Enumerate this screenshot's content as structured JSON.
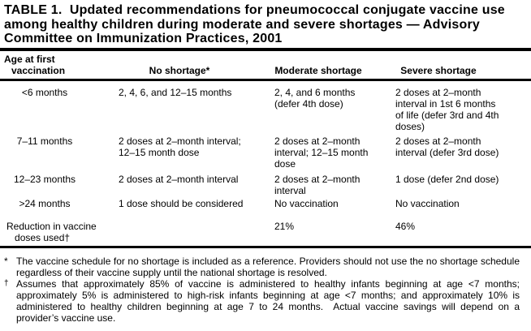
{
  "title": "TABLE 1.  Updated recommendations for pneumococcal conjugate vaccine use\namong healthy children during moderate and severe shortages — Advisory\nCommittee on Immunization Practices, 2001",
  "table": {
    "header": {
      "col1_line1": "Age at first",
      "col1_line2": "vaccination",
      "col2": "No shortage*",
      "col3": "Moderate shortage",
      "col4": "Severe shortage"
    },
    "rows": [
      {
        "age": "<6 months",
        "no_shortage": "2, 4, 6, and 12–15 months",
        "moderate": "2, 4, and 6 months\n(defer 4th dose)",
        "severe": "2 doses at 2–month\ninterval in 1st 6 months\nof life (defer 3rd and 4th\ndoses)"
      },
      {
        "age": "7–11 months",
        "no_shortage": "2 doses at 2–month interval;\n12–15 month dose",
        "moderate": "2 doses at 2–month\ninterval; 12–15 month\ndose",
        "severe": "2 doses at 2–month\ninterval (defer 3rd dose)"
      },
      {
        "age": "12–23 months",
        "no_shortage": "2 doses at 2–month interval",
        "moderate": "2 doses at 2–month\ninterval",
        "severe": "1 dose (defer 2nd dose)"
      },
      {
        "age": ">24 months",
        "no_shortage": "1 dose should be considered",
        "moderate": "No vaccination",
        "severe": "No vaccination"
      }
    ],
    "summary_row": {
      "label": "Reduction in vaccine\n   doses used†",
      "no_shortage": "",
      "moderate": "21%",
      "severe": "46%"
    }
  },
  "footnotes": [
    {
      "marker": "*",
      "text": "The vaccine schedule for no shortage is included as a reference. Providers should not use the no shortage schedule regardless of their vaccine supply until the national shortage is resolved."
    },
    {
      "marker": "†",
      "text": "Assumes that approximately 85% of vaccine is administered to healthy infants beginning at age <7 months; approximately 5% is administered to high-risk infants beginning at age <7 months; and approximately 10% is administered to healthy children beginning at age 7 to 24 months.  Actual vaccine savings will depend on a provider’s vaccine use."
    }
  ]
}
